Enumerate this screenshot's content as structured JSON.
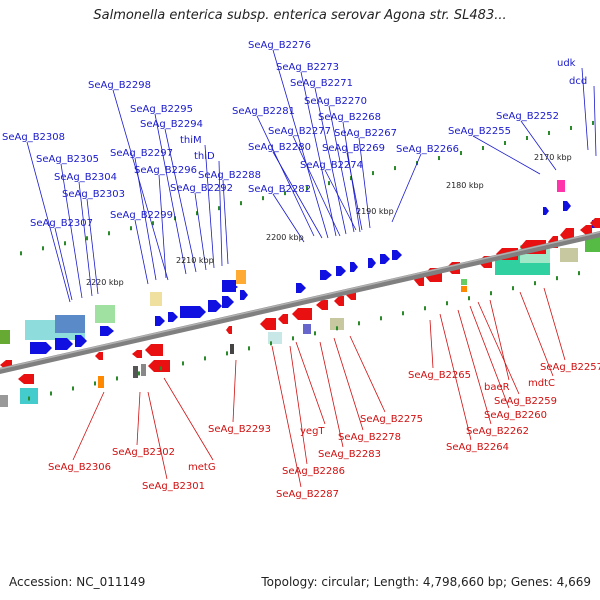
{
  "title": "Salmonella enterica subsp. enterica serovar Agona str. SL483...",
  "footer": {
    "accession": "Accession: NC_011149",
    "topology": "Topology: circular; Length: 4,798,660 bp; Genes: 4,669"
  },
  "colors": {
    "forward_label": "#1a1acc",
    "reverse_label": "#d01010",
    "forward_gene": "#1010e0",
    "reverse_gene": "#e81010",
    "backbone": "#808080",
    "tick": "#2a8a2a"
  },
  "kbp_ticks": [
    "2170 kbp",
    "2180 kbp",
    "2190 kbp",
    "2200 kbp",
    "2210 kbp",
    "2220 kbp"
  ],
  "forward_labels": [
    "SeAg_B2276",
    "SeAg_B2273",
    "SeAg_B2271",
    "SeAg_B2270",
    "SeAg_B2268",
    "SeAg_B2267",
    "SeAg_B2269",
    "SeAg_B2266",
    "SeAg_B2274",
    "SeAg_B2277",
    "SeAg_B2281",
    "SeAg_B2280",
    "SeAg_B2282",
    "SeAg_B2298",
    "SeAg_B2295",
    "SeAg_B2294",
    "thiM",
    "SeAg_B2297",
    "thiD",
    "SeAg_B2296",
    "SeAg_B2288",
    "SeAg_B2292",
    "SeAg_B2308",
    "SeAg_B2305",
    "SeAg_B2304",
    "SeAg_B2303",
    "SeAg_B2299",
    "SeAg_B2307",
    "SeAg_B2255",
    "SeAg_B2252",
    "udk",
    "dcd"
  ],
  "reverse_labels": [
    "SeAg_B2257",
    "mdtC",
    "baeR",
    "SeAg_B2265",
    "SeAg_B2259",
    "SeAg_B2260",
    "SeAg_B2262",
    "SeAg_B2264",
    "SeAg_B2275",
    "SeAg_B2278",
    "SeAg_B2283",
    "yegT",
    "SeAg_B2286",
    "SeAg_B2287",
    "SeAg_B2293",
    "metG",
    "SeAg_B2302",
    "SeAg_B2301",
    "SeAg_B2306"
  ]
}
